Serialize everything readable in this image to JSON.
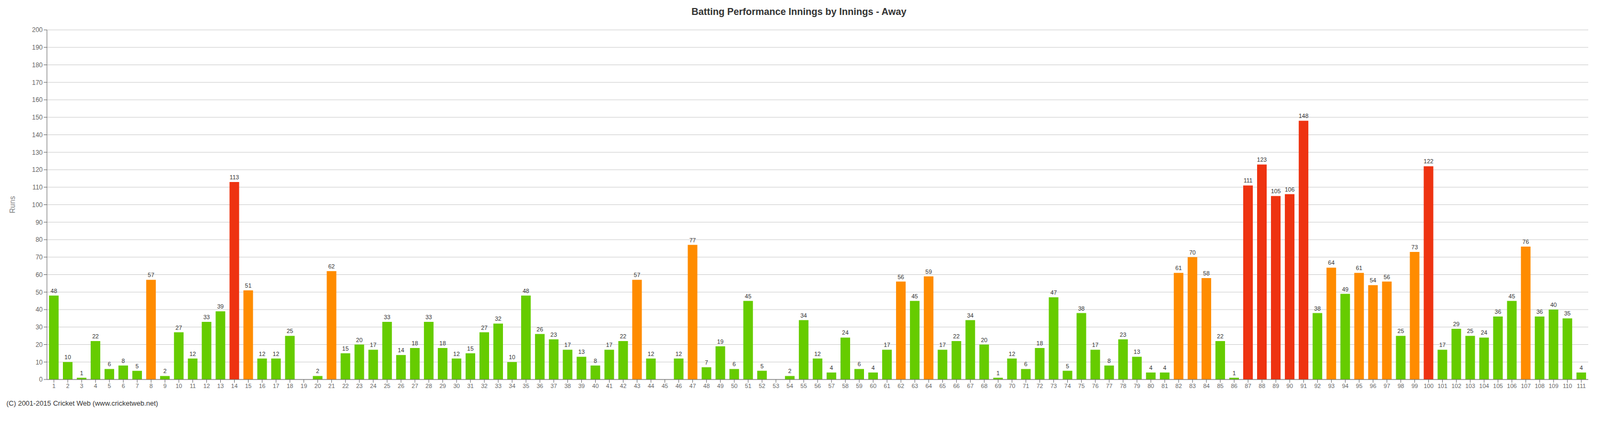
{
  "chart_data": {
    "type": "bar",
    "title": "Batting Performance Innings by Innings - Away",
    "ylabel": "Runs",
    "annotations": [
      "(C) 2001-2015 Cricket Web (www.cricketweb.net)"
    ],
    "categories": [
      "1",
      "2",
      "3",
      "4",
      "5",
      "6",
      "7",
      "8",
      "9",
      "10",
      "11",
      "12",
      "13",
      "14",
      "15",
      "16",
      "17",
      "18",
      "19",
      "20",
      "21",
      "22",
      "23",
      "24",
      "25",
      "26",
      "27",
      "28",
      "29",
      "30",
      "31",
      "32",
      "33",
      "34",
      "35",
      "36",
      "37",
      "38",
      "39",
      "40",
      "41",
      "42",
      "43",
      "44",
      "45",
      "46",
      "47",
      "48",
      "49",
      "50",
      "51",
      "52",
      "53",
      "54",
      "55",
      "56",
      "57",
      "58",
      "59",
      "60",
      "61",
      "62",
      "63",
      "64",
      "65",
      "66",
      "67",
      "68",
      "69",
      "70",
      "71",
      "72",
      "73",
      "74",
      "75",
      "76",
      "77",
      "78",
      "79",
      "80",
      "81",
      "82",
      "83",
      "84",
      "85",
      "86",
      "87",
      "88",
      "89",
      "90",
      "91",
      "92",
      "93",
      "94",
      "95",
      "96",
      "97",
      "98",
      "99",
      "100",
      "101",
      "102",
      "103",
      "104",
      "105",
      "106",
      "107",
      "108",
      "109",
      "110",
      "111"
    ],
    "values": [
      48,
      10,
      1,
      22,
      6,
      8,
      5,
      57,
      2,
      27,
      12,
      33,
      39,
      113,
      51,
      12,
      12,
      25,
      0,
      2,
      62,
      15,
      20,
      17,
      33,
      14,
      18,
      33,
      18,
      12,
      15,
      27,
      32,
      10,
      48,
      26,
      23,
      17,
      13,
      8,
      17,
      22,
      57,
      12,
      0,
      12,
      77,
      7,
      19,
      6,
      45,
      5,
      0,
      2,
      34,
      12,
      4,
      24,
      6,
      4,
      17,
      56,
      45,
      59,
      17,
      22,
      34,
      20,
      1,
      12,
      6,
      18,
      47,
      5,
      38,
      17,
      8,
      23,
      13,
      4,
      4,
      61,
      70,
      58,
      22,
      1,
      111,
      123,
      105,
      106,
      148,
      38,
      64,
      49,
      61,
      54,
      56,
      25,
      73,
      122,
      17,
      29,
      25,
      24,
      36,
      45,
      76,
      36,
      40,
      35,
      4
    ],
    "colors": [
      "#66cc00",
      "#66cc00",
      "#66cc00",
      "#66cc00",
      "#66cc00",
      "#66cc00",
      "#66cc00",
      "#ff8c00",
      "#66cc00",
      "#66cc00",
      "#66cc00",
      "#66cc00",
      "#66cc00",
      "#ee3311",
      "#ff8c00",
      "#66cc00",
      "#66cc00",
      "#66cc00",
      "#66cc00",
      "#66cc00",
      "#ff8c00",
      "#66cc00",
      "#66cc00",
      "#66cc00",
      "#66cc00",
      "#66cc00",
      "#66cc00",
      "#66cc00",
      "#66cc00",
      "#66cc00",
      "#66cc00",
      "#66cc00",
      "#66cc00",
      "#66cc00",
      "#66cc00",
      "#66cc00",
      "#66cc00",
      "#66cc00",
      "#66cc00",
      "#66cc00",
      "#66cc00",
      "#66cc00",
      "#ff8c00",
      "#66cc00",
      "#66cc00",
      "#66cc00",
      "#ff8c00",
      "#66cc00",
      "#66cc00",
      "#66cc00",
      "#66cc00",
      "#66cc00",
      "#66cc00",
      "#66cc00",
      "#66cc00",
      "#66cc00",
      "#66cc00",
      "#66cc00",
      "#66cc00",
      "#66cc00",
      "#66cc00",
      "#ff8c00",
      "#66cc00",
      "#ff8c00",
      "#66cc00",
      "#66cc00",
      "#66cc00",
      "#66cc00",
      "#66cc00",
      "#66cc00",
      "#66cc00",
      "#66cc00",
      "#66cc00",
      "#66cc00",
      "#66cc00",
      "#66cc00",
      "#66cc00",
      "#66cc00",
      "#66cc00",
      "#66cc00",
      "#66cc00",
      "#ff8c00",
      "#ff8c00",
      "#ff8c00",
      "#66cc00",
      "#66cc00",
      "#ee3311",
      "#ee3311",
      "#ee3311",
      "#ee3311",
      "#ee3311",
      "#66cc00",
      "#ff8c00",
      "#66cc00",
      "#ff8c00",
      "#ff8c00",
      "#ff8c00",
      "#66cc00",
      "#ff8c00",
      "#ee3311",
      "#66cc00",
      "#66cc00",
      "#66cc00",
      "#66cc00",
      "#66cc00",
      "#66cc00",
      "#ff8c00",
      "#66cc00",
      "#66cc00",
      "#66cc00",
      "#66cc00"
    ],
    "ylim": [
      0,
      200
    ],
    "yticks": [
      0,
      10,
      20,
      30,
      40,
      50,
      60,
      70,
      80,
      90,
      100,
      110,
      120,
      130,
      140,
      150,
      160,
      170,
      180,
      190,
      200
    ],
    "grid": true,
    "data_labels": true
  }
}
